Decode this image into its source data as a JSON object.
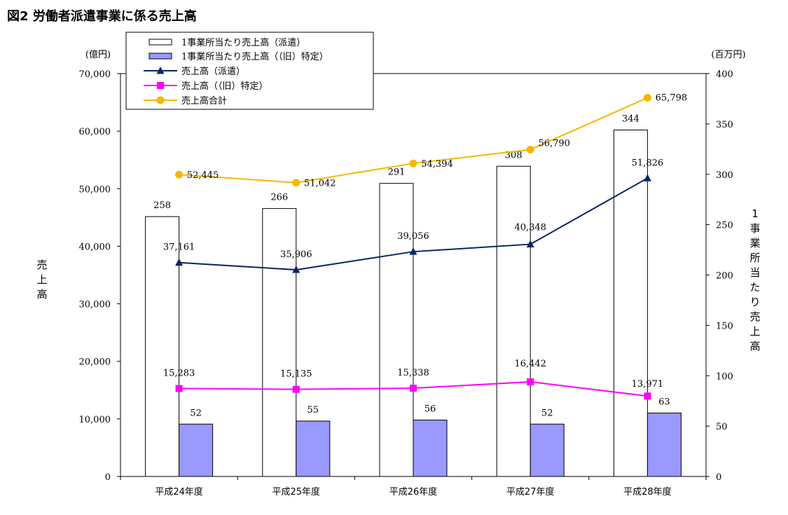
{
  "chart_data": {
    "type": "bar+line",
    "title": "図2 労働者派遣事業に係る売上高",
    "categories": [
      "平成24年度",
      "平成25年度",
      "平成26年度",
      "平成27年度",
      "平成28年度"
    ],
    "left_axis": {
      "unit": "(億円)",
      "label": "売上高",
      "range": [
        0,
        70000
      ],
      "ticks": [
        0,
        10000,
        20000,
        30000,
        40000,
        50000,
        60000,
        70000
      ],
      "tick_labels": [
        "0",
        "10,000",
        "20,000",
        "30,000",
        "40,000",
        "50,000",
        "60,000",
        "70,000"
      ]
    },
    "right_axis": {
      "unit": "(百万円)",
      "label": "1事業所当たり売上高",
      "range": [
        0,
        400
      ],
      "ticks": [
        0,
        50,
        100,
        150,
        200,
        250,
        300,
        350,
        400
      ],
      "tick_labels": [
        "0",
        "50",
        "100",
        "150",
        "200",
        "250",
        "300",
        "350",
        "400"
      ]
    },
    "bar_series": [
      {
        "name": "1事業所当たり売上高（派遣）",
        "axis": "right",
        "fill": "#ffffff",
        "values": [
          258,
          266,
          291,
          308,
          344
        ],
        "labels": [
          "258",
          "266",
          "291",
          "308",
          "344"
        ]
      },
      {
        "name": "1事業所当たり売上高（（旧）特定）",
        "axis": "right",
        "fill": "#9999ff",
        "values": [
          52,
          55,
          56,
          52,
          63
        ],
        "labels": [
          "52",
          "55",
          "56",
          "52",
          "63"
        ]
      }
    ],
    "line_series": [
      {
        "name": "売上高（派遣）",
        "axis": "left",
        "color": "#0b2466",
        "marker": "triangle",
        "values": [
          37161,
          35906,
          39056,
          40348,
          51826
        ],
        "labels": [
          "37,161",
          "35,906",
          "39,056",
          "40,348",
          "51,826"
        ]
      },
      {
        "name": "売上高（（旧）特定）",
        "axis": "left",
        "color": "#ff00ff",
        "marker": "square",
        "values": [
          15283,
          15135,
          15338,
          16442,
          13971
        ],
        "labels": [
          "15,283",
          "15,135",
          "15,338",
          "16,442",
          "13,971"
        ]
      },
      {
        "name": "売上高合計",
        "axis": "left",
        "color": "#f5b800",
        "marker": "circle",
        "values": [
          52445,
          51042,
          54394,
          56790,
          65798
        ],
        "labels": [
          "52,445",
          "51,042",
          "54,394",
          "56,790",
          "65,798"
        ]
      }
    ],
    "legend_position": "top-left"
  }
}
